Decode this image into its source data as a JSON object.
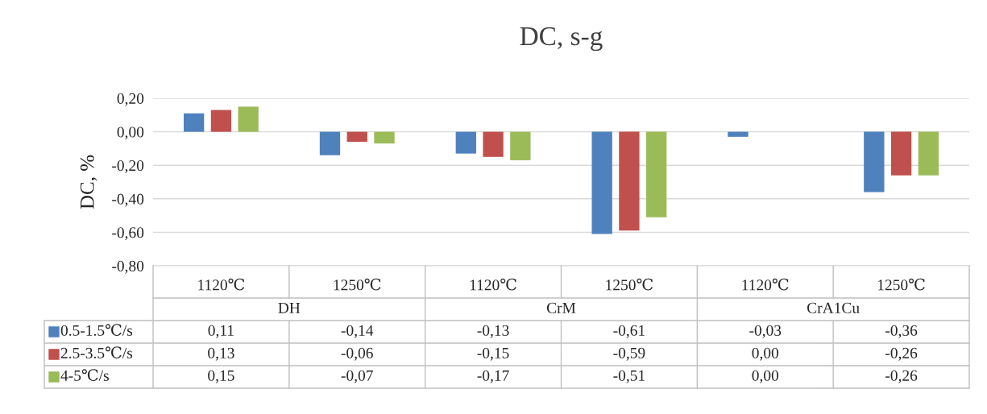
{
  "chart_data": {
    "type": "bar",
    "title": "DC, s-g",
    "ylabel": "DC, %",
    "categories": [
      "1120℃",
      "1250℃",
      "1120℃",
      "1250℃",
      "1120℃",
      "1250℃"
    ],
    "annotations": [
      "DH",
      "CrM",
      "CrA1Cu"
    ],
    "series": [
      {
        "name": "0.5-1.5℃/s",
        "color": "#4f81bd",
        "values": [
          0.11,
          -0.14,
          -0.13,
          -0.61,
          -0.03,
          -0.36
        ],
        "value_labels": [
          "0,11",
          "-0,14",
          "-0,13",
          "-0,61",
          "-0,03",
          "-0,36"
        ]
      },
      {
        "name": "2.5-3.5℃/s",
        "color": "#c0504d",
        "values": [
          0.13,
          -0.06,
          -0.15,
          -0.59,
          0.0,
          -0.26
        ],
        "value_labels": [
          "0,13",
          "-0,06",
          "-0,15",
          "-0,59",
          "0,00",
          "-0,26"
        ]
      },
      {
        "name": "4-5℃/s",
        "color": "#9bbb59",
        "values": [
          0.15,
          -0.07,
          -0.17,
          -0.51,
          0.0,
          -0.26
        ],
        "value_labels": [
          "0,15",
          "-0,07",
          "-0,17",
          "-0,51",
          "0,00",
          "-0,26"
        ]
      }
    ],
    "ylim": [
      -0.8,
      0.2
    ],
    "yticks": [
      {
        "value": -0.8,
        "label": "-0,80"
      },
      {
        "value": -0.6,
        "label": "-0,60"
      },
      {
        "value": -0.4,
        "label": "-0,40"
      },
      {
        "value": -0.2,
        "label": "-0,20"
      },
      {
        "value": 0,
        "label": "0,00"
      },
      {
        "value": 0.2,
        "label": "0,20"
      }
    ],
    "grid": "y",
    "legend": "bottom left"
  }
}
